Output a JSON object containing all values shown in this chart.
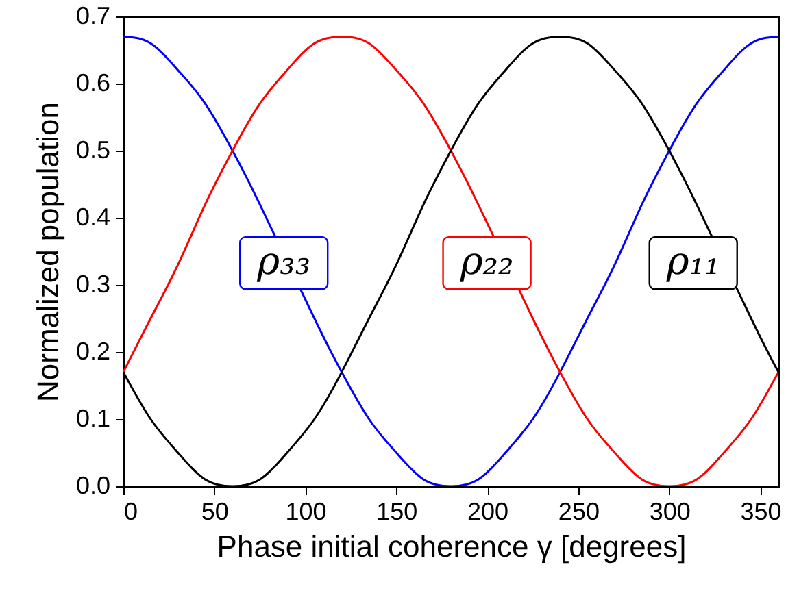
{
  "chart_data": {
    "type": "line",
    "xlabel": "Phase initial coherence γ [degrees]",
    "ylabel": "Normalized population",
    "x": [
      0,
      15,
      30,
      45,
      60,
      75,
      90,
      105,
      120,
      135,
      150,
      165,
      180,
      195,
      210,
      225,
      240,
      255,
      270,
      285,
      300,
      315,
      330,
      345,
      360
    ],
    "series": [
      {
        "name": "ρ₃₃",
        "color": "#0000ff",
        "values": [
          0.67,
          0.66,
          0.62,
          0.57,
          0.5,
          0.42,
          null,
          0.25,
          0.17,
          0.1,
          0.05,
          0.01,
          0,
          0.01,
          0.05,
          0.1,
          0.17,
          0.25,
          0.33,
          0.42,
          0.5,
          0.57,
          0.62,
          0.66,
          0.67
        ]
      },
      {
        "name": "ρ₂₂",
        "color": "#ff0000",
        "values": [
          0.17,
          0.25,
          0.33,
          0.42,
          0.5,
          0.57,
          0.62,
          0.66,
          0.67,
          0.66,
          0.62,
          0.57,
          0.5,
          0.42,
          null,
          0.25,
          0.17,
          0.1,
          0.05,
          0.01,
          0,
          0.01,
          0.05,
          0.1,
          0.17
        ]
      },
      {
        "name": "ρ₁₁",
        "color": "#000000",
        "values": [
          0.17,
          0.1,
          0.05,
          0.01,
          0,
          0.01,
          0.05,
          0.1,
          0.17,
          0.25,
          0.33,
          0.42,
          0.5,
          0.57,
          0.62,
          0.66,
          0.67,
          0.66,
          0.62,
          0.57,
          0.5,
          0.42,
          null,
          0.25,
          0.17
        ]
      }
    ],
    "xlim": [
      0,
      360
    ],
    "xticks": [
      0,
      50,
      100,
      150,
      200,
      250,
      300,
      350
    ],
    "ylim": [
      0,
      0.7
    ],
    "yticks": [
      {
        "value": 0,
        "label": "0.0"
      },
      0.1,
      0.2,
      0.3,
      0.4,
      0.5,
      0.6,
      0.7
    ],
    "marker": "none",
    "grid": false
  }
}
